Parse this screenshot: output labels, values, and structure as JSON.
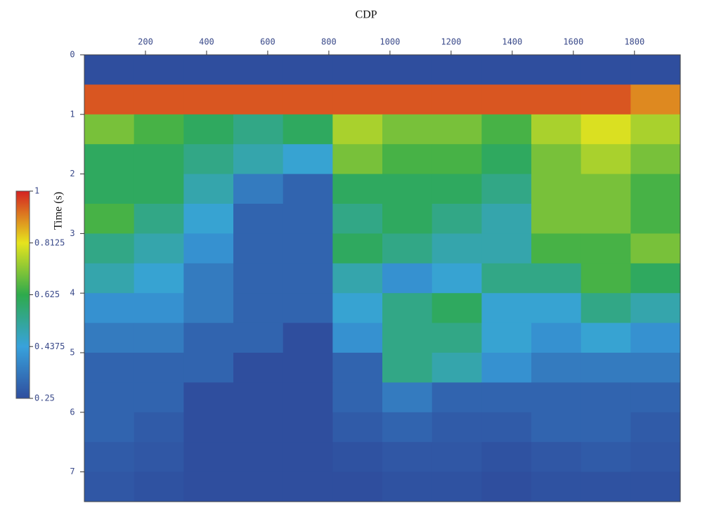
{
  "chart_data": {
    "type": "heatmap",
    "title": "CDP",
    "y_label": "Time (s)",
    "xbins": [
      0,
      162.5,
      325,
      487.5,
      650,
      812.5,
      975,
      1137.5,
      1300,
      1462.5,
      1625,
      1787.5,
      1950
    ],
    "ybins": [
      0,
      0.5,
      1,
      1.5,
      2,
      2.5,
      3,
      3.5,
      4,
      4.5,
      5,
      5.5,
      6,
      6.5,
      7,
      7.5
    ],
    "values": [
      [
        0.25,
        0.25,
        0.25,
        0.25,
        0.25,
        0.25,
        0.25,
        0.25,
        0.25,
        0.25,
        0.25,
        0.25
      ],
      [
        0.95,
        0.95,
        0.95,
        0.95,
        0.95,
        0.95,
        0.95,
        0.95,
        0.95,
        0.95,
        0.95,
        0.9
      ],
      [
        0.7,
        0.65,
        0.6,
        0.55,
        0.6,
        0.75,
        0.7,
        0.7,
        0.65,
        0.75,
        0.8,
        0.75
      ],
      [
        0.6,
        0.6,
        0.55,
        0.5,
        0.45,
        0.7,
        0.65,
        0.65,
        0.6,
        0.7,
        0.75,
        0.7
      ],
      [
        0.6,
        0.6,
        0.5,
        0.35,
        0.3,
        0.6,
        0.6,
        0.6,
        0.55,
        0.7,
        0.7,
        0.65
      ],
      [
        0.65,
        0.55,
        0.45,
        0.3,
        0.3,
        0.55,
        0.6,
        0.55,
        0.5,
        0.7,
        0.7,
        0.65
      ],
      [
        0.55,
        0.5,
        0.4,
        0.3,
        0.3,
        0.6,
        0.55,
        0.5,
        0.5,
        0.65,
        0.65,
        0.7
      ],
      [
        0.5,
        0.45,
        0.35,
        0.3,
        0.3,
        0.5,
        0.4,
        0.45,
        0.55,
        0.55,
        0.65,
        0.6
      ],
      [
        0.4,
        0.4,
        0.35,
        0.3,
        0.3,
        0.45,
        0.55,
        0.6,
        0.45,
        0.45,
        0.55,
        0.5
      ],
      [
        0.35,
        0.35,
        0.3,
        0.3,
        0.25,
        0.4,
        0.55,
        0.55,
        0.45,
        0.4,
        0.45,
        0.4
      ],
      [
        0.3,
        0.3,
        0.3,
        0.25,
        0.25,
        0.3,
        0.55,
        0.5,
        0.4,
        0.35,
        0.35,
        0.35
      ],
      [
        0.3,
        0.3,
        0.25,
        0.25,
        0.25,
        0.3,
        0.35,
        0.3,
        0.3,
        0.3,
        0.3,
        0.3
      ],
      [
        0.3,
        0.28,
        0.25,
        0.25,
        0.25,
        0.28,
        0.3,
        0.28,
        0.28,
        0.3,
        0.3,
        0.28
      ],
      [
        0.28,
        0.27,
        0.25,
        0.25,
        0.25,
        0.26,
        0.27,
        0.27,
        0.26,
        0.27,
        0.28,
        0.27
      ],
      [
        0.27,
        0.26,
        0.25,
        0.25,
        0.25,
        0.25,
        0.26,
        0.26,
        0.25,
        0.26,
        0.26,
        0.26
      ]
    ],
    "xlim": [
      0,
      1950
    ],
    "ylim": [
      0,
      7.5
    ],
    "y_inverted": true,
    "xticks": [
      200,
      400,
      600,
      800,
      1000,
      1200,
      1400,
      1600,
      1800
    ],
    "yticks": [
      0,
      1,
      2,
      3,
      4,
      5,
      6,
      7
    ],
    "colorbar": {
      "lim": [
        0.25,
        1
      ],
      "ticks": [
        0.25,
        0.4375,
        0.625,
        0.8125,
        1
      ],
      "colors": [
        "#2f4e9e",
        "#38a2dc",
        "#2eaa4c",
        "#e6e41e",
        "#d42222"
      ]
    }
  }
}
